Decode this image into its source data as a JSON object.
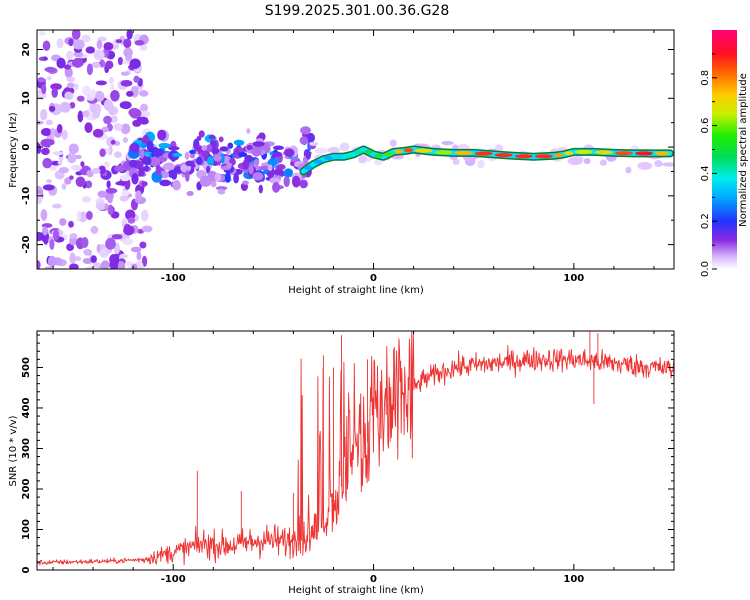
{
  "figure": {
    "title": "S199.2025.301.00.36.G28"
  },
  "chart_data": [
    {
      "type": "heatmap",
      "title": "S199.2025.301.00.36.G28",
      "xlabel": "Height of straight line (km)",
      "ylabel": "Frequency (Hz)",
      "xlim": [
        -168,
        150
      ],
      "ylim": [
        -25,
        24
      ],
      "x_ticks": [
        -100,
        0,
        100
      ],
      "y_ticks": [
        -20,
        -10,
        0,
        10,
        20
      ],
      "colorbar": {
        "label": "Normalized spectral amplitude",
        "range": [
          0,
          1
        ],
        "ticks": [
          0,
          0.2,
          0.4,
          0.6,
          0.8
        ]
      },
      "ridge": {
        "x": [
          -35,
          -30,
          -25,
          -20,
          -15,
          -10,
          -5,
          0,
          5,
          10,
          15,
          20,
          30,
          40,
          50,
          60,
          70,
          80,
          90,
          95,
          100,
          110,
          120,
          130,
          140,
          148
        ],
        "freq": [
          -5,
          -3.5,
          -2.5,
          -2,
          -2,
          -1.5,
          -0.5,
          -1.5,
          -2,
          -1,
          -0.8,
          -0.5,
          -1,
          -1.2,
          -1.2,
          -1.5,
          -1.8,
          -2,
          -1.8,
          -1.5,
          -1,
          -1,
          -1.2,
          -1.3,
          -1.3,
          -1.3
        ],
        "amplitude": [
          0.3,
          0.3,
          0.3,
          0.3,
          0.4,
          0.4,
          0.45,
          0.5,
          0.55,
          0.6,
          0.9,
          0.8,
          0.6,
          0.65,
          0.85,
          0.9,
          0.85,
          0.9,
          0.85,
          0.7,
          0.7,
          0.6,
          0.8,
          0.9,
          0.9,
          0.6
        ]
      }
    },
    {
      "type": "line",
      "xlabel": "Height of straight line (km)",
      "ylabel": "SNR (10 * v/v)",
      "xlim": [
        -168,
        150
      ],
      "ylim": [
        0,
        590
      ],
      "x_ticks": [
        -100,
        0,
        100
      ],
      "y_ticks": [
        0,
        100,
        200,
        300,
        400,
        500
      ],
      "color": "#ee3333",
      "trend": {
        "x": [
          -168,
          -150,
          -130,
          -115,
          -105,
          -95,
          -85,
          -75,
          -65,
          -55,
          -45,
          -35,
          -28,
          -22,
          -15,
          -8,
          0,
          8,
          15,
          25,
          40,
          60,
          80,
          100,
          120,
          140,
          150
        ],
        "y": [
          18,
          20,
          22,
          26,
          38,
          50,
          65,
          60,
          65,
          75,
          70,
          75,
          95,
          150,
          215,
          290,
          330,
          380,
          430,
          470,
          500,
          510,
          520,
          520,
          510,
          500,
          495
        ]
      },
      "spikes": [
        {
          "x": -88,
          "y": 245
        },
        {
          "x": -66,
          "y": 195
        },
        {
          "x": -40,
          "y": 190
        },
        {
          "x": -25,
          "y": 530
        },
        {
          "x": -20,
          "y": 500
        },
        {
          "x": -16,
          "y": 580
        },
        {
          "x": -3,
          "y": 520
        },
        {
          "x": 10,
          "y": 545
        },
        {
          "x": 108,
          "y": 590
        },
        {
          "x": 112,
          "y": 585
        },
        {
          "x": 110,
          "y": 410
        }
      ]
    }
  ]
}
